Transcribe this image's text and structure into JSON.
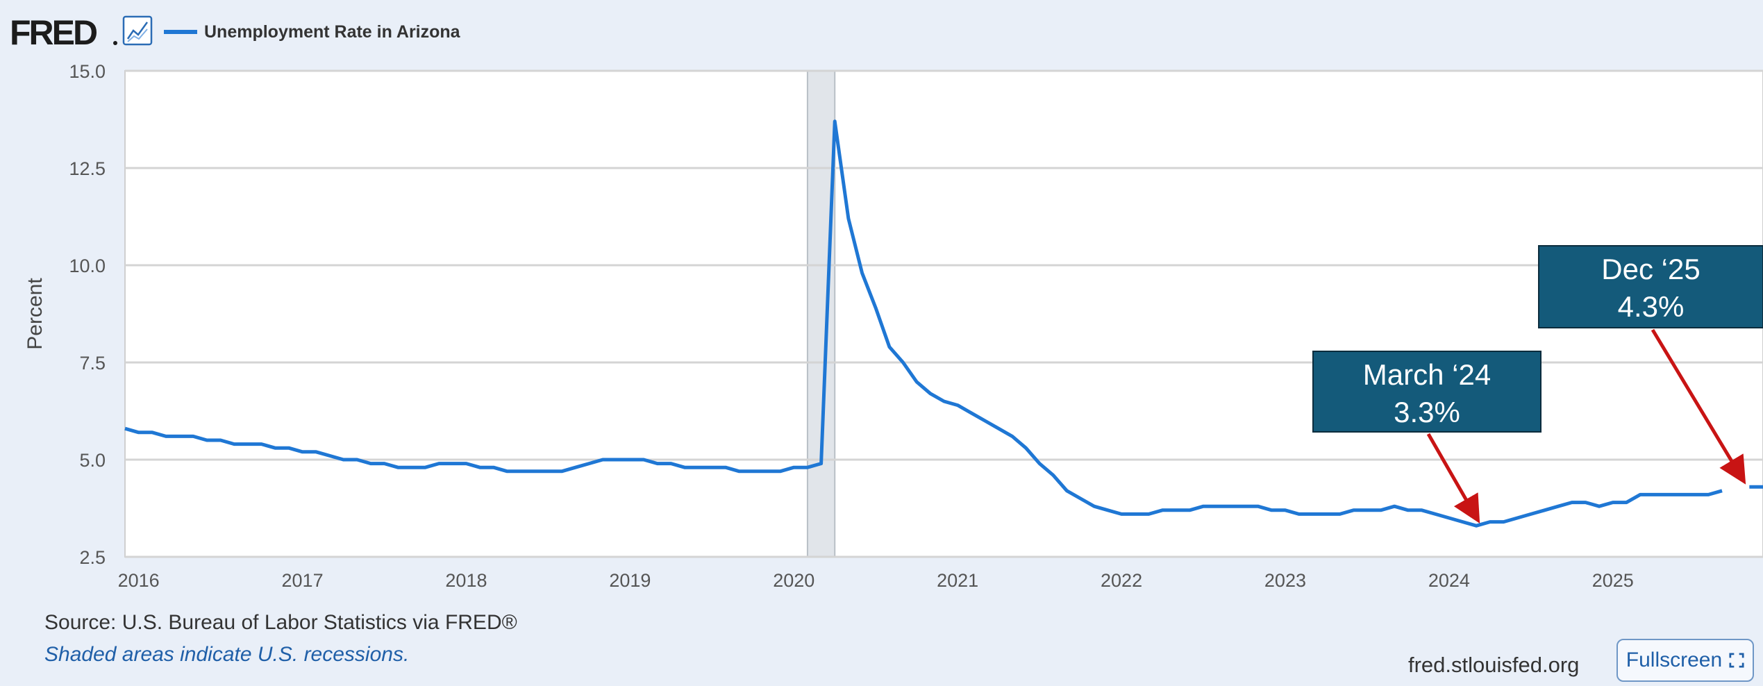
{
  "brand": {
    "logo_text": "FRED",
    "logo_icon": "line-chart-icon"
  },
  "legend": {
    "series_label": "Unemployment Rate in Arizona",
    "color": "#1f77d4"
  },
  "source": "Source: U.S. Bureau of Labor Statistics via FRED®",
  "recession_note": "Shaded areas indicate U.S. recessions.",
  "site": "fred.stlouisfed.org",
  "fullscreen_label": "Fullscreen",
  "colors": {
    "background": "#e9eff8",
    "plot_bg": "#ffffff",
    "line": "#1f77d4",
    "recession": "#e1e5ea",
    "callout_bg": "#145a7a",
    "arrow": "#c81414"
  },
  "chart_data": {
    "type": "line",
    "title": "",
    "xlabel": "",
    "ylabel": "Percent",
    "ylim": [
      2.5,
      15.0
    ],
    "yticks": [
      "15.0",
      "12.5",
      "10.0",
      "7.5",
      "5.0",
      "2.5"
    ],
    "yticks_values": [
      15.0,
      12.5,
      10.0,
      7.5,
      5.0,
      2.5
    ],
    "xticks": [
      "2016",
      "2017",
      "2018",
      "2019",
      "2020",
      "2021",
      "2022",
      "2023",
      "2024",
      "2025"
    ],
    "xticks_values": [
      2016,
      2017,
      2018,
      2019,
      2020,
      2021,
      2022,
      2023,
      2024,
      2025
    ],
    "xlim": [
      "2015-12",
      "2025-12"
    ],
    "grid": true,
    "recessions": [
      {
        "start": "2020-02",
        "end": "2020-04"
      }
    ],
    "series": [
      {
        "name": "Unemployment Rate in Arizona",
        "points": [
          [
            "2015-12",
            5.8
          ],
          [
            "2016-01",
            5.7
          ],
          [
            "2016-02",
            5.7
          ],
          [
            "2016-03",
            5.6
          ],
          [
            "2016-04",
            5.6
          ],
          [
            "2016-05",
            5.6
          ],
          [
            "2016-06",
            5.5
          ],
          [
            "2016-07",
            5.5
          ],
          [
            "2016-08",
            5.4
          ],
          [
            "2016-09",
            5.4
          ],
          [
            "2016-10",
            5.4
          ],
          [
            "2016-11",
            5.3
          ],
          [
            "2016-12",
            5.3
          ],
          [
            "2017-01",
            5.2
          ],
          [
            "2017-02",
            5.2
          ],
          [
            "2017-03",
            5.1
          ],
          [
            "2017-04",
            5.0
          ],
          [
            "2017-05",
            5.0
          ],
          [
            "2017-06",
            4.9
          ],
          [
            "2017-07",
            4.9
          ],
          [
            "2017-08",
            4.8
          ],
          [
            "2017-09",
            4.8
          ],
          [
            "2017-10",
            4.8
          ],
          [
            "2017-11",
            4.9
          ],
          [
            "2017-12",
            4.9
          ],
          [
            "2018-01",
            4.9
          ],
          [
            "2018-02",
            4.8
          ],
          [
            "2018-03",
            4.8
          ],
          [
            "2018-04",
            4.7
          ],
          [
            "2018-05",
            4.7
          ],
          [
            "2018-06",
            4.7
          ],
          [
            "2018-07",
            4.7
          ],
          [
            "2018-08",
            4.7
          ],
          [
            "2018-09",
            4.8
          ],
          [
            "2018-10",
            4.9
          ],
          [
            "2018-11",
            5.0
          ],
          [
            "2018-12",
            5.0
          ],
          [
            "2019-01",
            5.0
          ],
          [
            "2019-02",
            5.0
          ],
          [
            "2019-03",
            4.9
          ],
          [
            "2019-04",
            4.9
          ],
          [
            "2019-05",
            4.8
          ],
          [
            "2019-06",
            4.8
          ],
          [
            "2019-07",
            4.8
          ],
          [
            "2019-08",
            4.8
          ],
          [
            "2019-09",
            4.7
          ],
          [
            "2019-10",
            4.7
          ],
          [
            "2019-11",
            4.7
          ],
          [
            "2019-12",
            4.7
          ],
          [
            "2020-01",
            4.8
          ],
          [
            "2020-02",
            4.8
          ],
          [
            "2020-03",
            4.9
          ],
          [
            "2020-04",
            13.7
          ],
          [
            "2020-05",
            11.2
          ],
          [
            "2020-06",
            9.8
          ],
          [
            "2020-07",
            8.9
          ],
          [
            "2020-08",
            7.9
          ],
          [
            "2020-09",
            7.5
          ],
          [
            "2020-10",
            7.0
          ],
          [
            "2020-11",
            6.7
          ],
          [
            "2020-12",
            6.5
          ],
          [
            "2021-01",
            6.4
          ],
          [
            "2021-02",
            6.2
          ],
          [
            "2021-03",
            6.0
          ],
          [
            "2021-04",
            5.8
          ],
          [
            "2021-05",
            5.6
          ],
          [
            "2021-06",
            5.3
          ],
          [
            "2021-07",
            4.9
          ],
          [
            "2021-08",
            4.6
          ],
          [
            "2021-09",
            4.2
          ],
          [
            "2021-10",
            4.0
          ],
          [
            "2021-11",
            3.8
          ],
          [
            "2021-12",
            3.7
          ],
          [
            "2022-01",
            3.6
          ],
          [
            "2022-02",
            3.6
          ],
          [
            "2022-03",
            3.6
          ],
          [
            "2022-04",
            3.7
          ],
          [
            "2022-05",
            3.7
          ],
          [
            "2022-06",
            3.7
          ],
          [
            "2022-07",
            3.8
          ],
          [
            "2022-08",
            3.8
          ],
          [
            "2022-09",
            3.8
          ],
          [
            "2022-10",
            3.8
          ],
          [
            "2022-11",
            3.8
          ],
          [
            "2022-12",
            3.7
          ],
          [
            "2023-01",
            3.7
          ],
          [
            "2023-02",
            3.6
          ],
          [
            "2023-03",
            3.6
          ],
          [
            "2023-04",
            3.6
          ],
          [
            "2023-05",
            3.6
          ],
          [
            "2023-06",
            3.7
          ],
          [
            "2023-07",
            3.7
          ],
          [
            "2023-08",
            3.7
          ],
          [
            "2023-09",
            3.8
          ],
          [
            "2023-10",
            3.7
          ],
          [
            "2023-11",
            3.7
          ],
          [
            "2023-12",
            3.6
          ],
          [
            "2024-01",
            3.5
          ],
          [
            "2024-02",
            3.4
          ],
          [
            "2024-03",
            3.3
          ],
          [
            "2024-04",
            3.4
          ],
          [
            "2024-05",
            3.4
          ],
          [
            "2024-06",
            3.5
          ],
          [
            "2024-07",
            3.6
          ],
          [
            "2024-08",
            3.7
          ],
          [
            "2024-09",
            3.8
          ],
          [
            "2024-10",
            3.9
          ],
          [
            "2024-11",
            3.9
          ],
          [
            "2024-12",
            3.8
          ],
          [
            "2025-01",
            3.9
          ],
          [
            "2025-02",
            3.9
          ],
          [
            "2025-03",
            4.1
          ],
          [
            "2025-04",
            4.1
          ],
          [
            "2025-05",
            4.1
          ],
          [
            "2025-06",
            4.1
          ],
          [
            "2025-07",
            4.1
          ],
          [
            "2025-08",
            4.1
          ],
          [
            "2025-09",
            4.2
          ]
        ],
        "segment_after_gap": [
          [
            "2025-11",
            4.3
          ],
          [
            "2025-12",
            4.3
          ]
        ]
      }
    ],
    "annotations": [
      {
        "line1": "March ‘24",
        "line2": "3.3%",
        "target": [
          "2024-03",
          3.3
        ]
      },
      {
        "line1": "Dec ‘25",
        "line2": "4.3%",
        "target": [
          "2025-12",
          4.3
        ]
      }
    ]
  }
}
